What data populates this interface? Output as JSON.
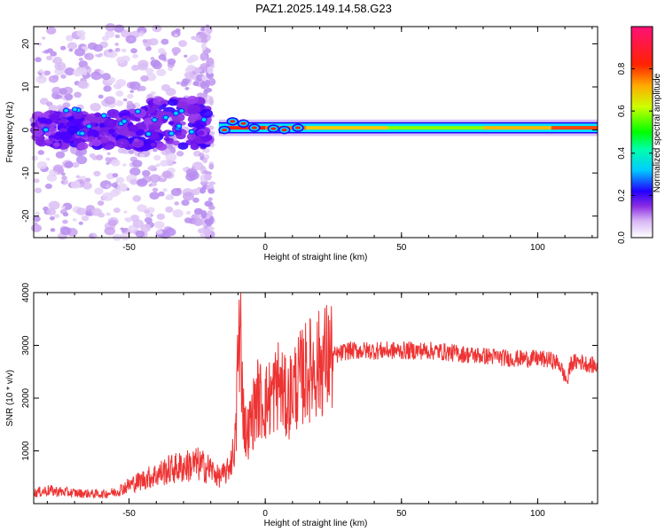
{
  "title": "PAZ1.2025.149.14.58.G23",
  "chart_data": [
    {
      "type": "heatmap",
      "name": "spectrogram",
      "xlabel": "Height of straight line (km)",
      "ylabel": "Frequency (Hz)",
      "xlim": [
        -85,
        122
      ],
      "ylim": [
        -25,
        24
      ],
      "xticks": [
        -50,
        0,
        50,
        100
      ],
      "yticks": [
        -20,
        -10,
        0,
        10,
        20
      ],
      "colorbar": {
        "label": "Normalized spectral amplitude",
        "range": [
          0,
          1
        ],
        "ticks": [
          0.0,
          0.2,
          0.4,
          0.6,
          0.8
        ]
      },
      "description_regions": [
        {
          "x_range": [
            -85,
            -22
          ],
          "freq_range": [
            -25,
            24
          ],
          "amplitude": "low, scattered noise"
        },
        {
          "x_range": [
            -85,
            -22
          ],
          "freq_range": [
            -4,
            7
          ],
          "amplitude": "0.1-0.3 clustered band"
        },
        {
          "x_range": [
            -23,
            -19
          ],
          "freq_range": [
            -25,
            24
          ],
          "amplitude": "vertical noise streak"
        },
        {
          "x_range": [
            -17,
            122
          ],
          "freq_range": [
            0,
            1.5
          ],
          "amplitude": "narrow tone, 0.5-1.0"
        }
      ]
    },
    {
      "type": "line",
      "name": "snr",
      "xlabel": "Height of straight line (km)",
      "ylabel": "SNR (10 * v/v)",
      "xlim": [
        -85,
        122
      ],
      "ylim": [
        0,
        4000
      ],
      "xticks": [
        -50,
        0,
        50,
        100
      ],
      "yticks": [
        1000,
        2000,
        3000,
        4000
      ],
      "color": "#ee3333",
      "envelope": {
        "x": [
          -85,
          -80,
          -70,
          -60,
          -55,
          -50,
          -45,
          -40,
          -35,
          -30,
          -25,
          -20,
          -17,
          -14,
          -12,
          -10,
          -9,
          -8,
          -7,
          -6,
          -5,
          -3,
          0,
          3,
          5,
          8,
          10,
          12,
          15,
          18,
          20,
          22,
          25,
          28,
          30,
          35,
          40,
          45,
          50,
          55,
          60,
          65,
          70,
          75,
          80,
          85,
          90,
          95,
          100,
          105,
          108,
          110,
          111,
          112,
          115,
          118,
          122
        ],
        "y": [
          200,
          250,
          200,
          180,
          220,
          350,
          450,
          550,
          650,
          700,
          750,
          650,
          500,
          600,
          900,
          1500,
          3200,
          1700,
          1300,
          1400,
          1600,
          2000,
          1900,
          2100,
          2300,
          1900,
          2200,
          2300,
          2500,
          2600,
          2650,
          2750,
          2800,
          2850,
          2900,
          2900,
          2900,
          2900,
          2900,
          2900,
          2900,
          2880,
          2850,
          2820,
          2800,
          2780,
          2750,
          2750,
          2750,
          2720,
          2650,
          2400,
          2300,
          2650,
          2700,
          2650,
          2600
        ]
      },
      "noise_amplitude": "about ±150 with tall spikes near x=-10 (peak 4000)"
    }
  ]
}
